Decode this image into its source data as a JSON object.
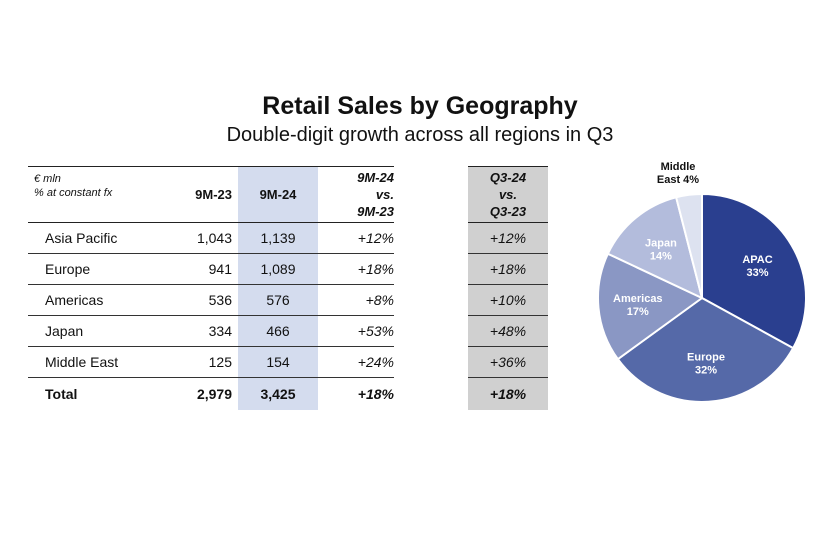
{
  "title": "Retail Sales by Geography",
  "subtitle": "Double-digit growth across all regions in Q3",
  "table": {
    "unit_line1": "€ mln",
    "unit_line2": "% at constant fx",
    "col_9m23": "9M-23",
    "col_9m24": "9M-24",
    "col_growth": [
      "9M-24",
      "vs.",
      "9M-23"
    ],
    "col_q3": [
      "Q3-24",
      "vs.",
      "Q3-23"
    ],
    "rows": [
      {
        "name": "Asia Pacific",
        "v23": "1,043",
        "v24": "1,139",
        "growth": "+12%",
        "q3": "+12%"
      },
      {
        "name": "Europe",
        "v23": "941",
        "v24": "1,089",
        "growth": "+18%",
        "q3": "+18%"
      },
      {
        "name": "Americas",
        "v23": "536",
        "v24": "576",
        "growth": "+8%",
        "q3": "+10%"
      },
      {
        "name": "Japan",
        "v23": "334",
        "v24": "466",
        "growth": "+53%",
        "q3": "+48%"
      },
      {
        "name": "Middle East",
        "v23": "125",
        "v24": "154",
        "growth": "+24%",
        "q3": "+36%"
      }
    ],
    "total": {
      "name": "Total",
      "v23": "2,979",
      "v24": "3,425",
      "growth": "+18%",
      "q3": "+18%"
    }
  },
  "chart_data": {
    "type": "pie",
    "title": "",
    "slices": [
      {
        "label": "APAC",
        "value": 33,
        "value_label": "33%",
        "color": "#2a3f8f",
        "text_color": "#ffffff"
      },
      {
        "label": "Europe",
        "value": 32,
        "value_label": "32%",
        "color": "#5569a8",
        "text_color": "#ffffff"
      },
      {
        "label": "Americas",
        "value": 17,
        "value_label": "17%",
        "color": "#8a97c4",
        "text_color": "#ffffff"
      },
      {
        "label": "Japan",
        "value": 14,
        "value_label": "14%",
        "color": "#b3bcdc",
        "text_color": "#ffffff"
      },
      {
        "label": "Middle East",
        "value": 4,
        "value_label": "Middle East 4%",
        "color": "#dde2f0",
        "text_color": "#111111",
        "outside": true
      }
    ]
  },
  "colors": {
    "shade_9m24": "#d4dcee",
    "shade_q3": "#d0d0d0"
  }
}
